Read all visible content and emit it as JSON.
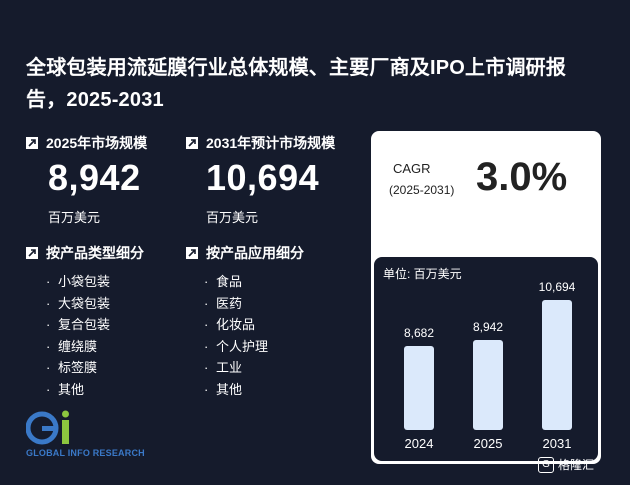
{
  "title": "全球包装用流延膜行业总体规模、主要厂商及IPO上市调研报告，2025-2031",
  "metrics": [
    {
      "label": "2025年市场规模",
      "value": "8,942",
      "unit": "百万美元"
    },
    {
      "label": "2031年预计市场规模",
      "value": "10,694",
      "unit": "百万美元"
    }
  ],
  "segments": {
    "by_type": {
      "label": "按产品类型细分",
      "items": [
        "小袋包装",
        "大袋包装",
        "复合包装",
        "缠绕膜",
        "标签膜",
        "其他"
      ]
    },
    "by_application": {
      "label": "按产品应用细分",
      "items": [
        "食品",
        "医药",
        "化妆品",
        "个人护理",
        "工业",
        "其他"
      ]
    }
  },
  "cagr": {
    "label": "CAGR",
    "years": "(2025-2031)",
    "value": "3.0%"
  },
  "chart_data": {
    "type": "bar",
    "unit_label": "单位: 百万美元",
    "categories": [
      "2024",
      "2025",
      "2031"
    ],
    "values": [
      8682,
      8942,
      10694
    ],
    "value_labels": [
      "8,682",
      "8,942",
      "10,694"
    ]
  },
  "logo": {
    "text": "GLOBAL INFO RESEARCH"
  },
  "watermark": {
    "text": "格隆汇"
  },
  "colors": {
    "background": "#151b2c",
    "bar": "#dbe9fb",
    "logo_blue": "#3a79c8",
    "logo_green": "#8dc63f"
  }
}
